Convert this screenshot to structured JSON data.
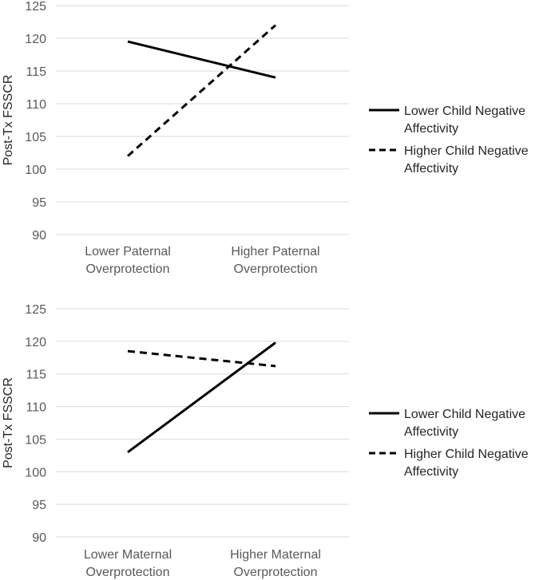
{
  "chart_data": [
    {
      "type": "line",
      "ylabel": "Post-Tx FSSCR",
      "ylim": [
        90,
        125
      ],
      "yticks": [
        90,
        95,
        100,
        105,
        110,
        115,
        120,
        125
      ],
      "grid": true,
      "categories": [
        [
          "Lower Paternal",
          "Overprotection"
        ],
        [
          "Higher Paternal",
          "Overprotection"
        ]
      ],
      "series": [
        {
          "name": "Lower Child Negative Affectivity",
          "legend_lines": [
            "Lower Child Negative",
            "Affectivity"
          ],
          "style": "solid",
          "values": [
            119.5,
            114.0
          ]
        },
        {
          "name": "Higher Child Negative Affectivity",
          "legend_lines": [
            "Higher Child Negative",
            "Affectivity"
          ],
          "style": "dashed",
          "values": [
            102.0,
            122.0
          ]
        }
      ],
      "legend": "right"
    },
    {
      "type": "line",
      "ylabel": "Post-Tx FSSCR",
      "ylim": [
        90,
        125
      ],
      "yticks": [
        90,
        95,
        100,
        105,
        110,
        115,
        120,
        125
      ],
      "grid": true,
      "categories": [
        [
          "Lower Maternal",
          "Overprotection"
        ],
        [
          "Higher Maternal",
          "Overprotection"
        ]
      ],
      "series": [
        {
          "name": "Lower Child Negative Affectivity",
          "legend_lines": [
            "Lower Child Negative",
            "Affectivity"
          ],
          "style": "solid",
          "values": [
            103.0,
            119.8
          ]
        },
        {
          "name": "Higher Child Negative Affectivity",
          "legend_lines": [
            "Higher Child Negative",
            "Affectivity"
          ],
          "style": "dashed",
          "values": [
            118.5,
            116.2
          ]
        }
      ],
      "legend": "right"
    }
  ],
  "colors": {
    "line": "#000000",
    "grid": "#d9d9d9",
    "text": "#595959"
  }
}
